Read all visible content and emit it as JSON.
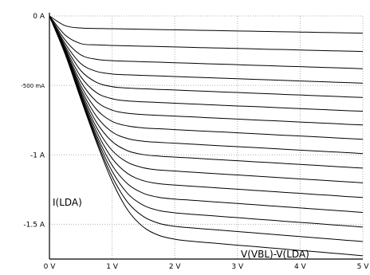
{
  "chart_data": {
    "type": "line",
    "title": "",
    "xlabel": "V(VBL)-V(LDA)",
    "ylabel": "I(LDA)",
    "xlim": [
      0,
      5
    ],
    "ylim": [
      -1.75,
      0
    ],
    "grid": true,
    "x_ticks": [
      {
        "value": 0,
        "label": "0 V"
      },
      {
        "value": 1,
        "label": "1 V"
      },
      {
        "value": 2,
        "label": "2 V"
      },
      {
        "value": 3,
        "label": "3 V"
      },
      {
        "value": 4,
        "label": "4 V"
      },
      {
        "value": 5,
        "label": "5 V"
      }
    ],
    "y_ticks": [
      {
        "value": 0,
        "label": "0 A",
        "small": false
      },
      {
        "value": -0.5,
        "label": "-500 mA",
        "small": true
      },
      {
        "value": -1,
        "label": "-1 A",
        "small": false
      },
      {
        "value": -1.5,
        "label": "-1.5 A",
        "small": false
      }
    ],
    "x": [
      0,
      0.25,
      0.5,
      0.75,
      1,
      1.25,
      1.5,
      1.75,
      2,
      2.25,
      2.5,
      2.75,
      3,
      3.25,
      3.5,
      3.75,
      4,
      4.25,
      4.5,
      4.75,
      5
    ],
    "series": [
      {
        "values": [
          0,
          -0.07,
          -0.087,
          -0.09,
          -0.092,
          -0.094,
          -0.096,
          -0.098,
          -0.1,
          -0.102,
          -0.104,
          -0.106,
          -0.108,
          -0.11,
          -0.112,
          -0.114,
          -0.116,
          -0.118,
          -0.12,
          -0.122,
          -0.124
        ]
      },
      {
        "values": [
          0,
          -0.137,
          -0.199,
          -0.208,
          -0.212,
          -0.215,
          -0.218,
          -0.22,
          -0.223,
          -0.226,
          -0.229,
          -0.231,
          -0.234,
          -0.237,
          -0.24,
          -0.242,
          -0.245,
          -0.248,
          -0.251,
          -0.253,
          -0.256
        ]
      },
      {
        "values": [
          0,
          -0.173,
          -0.28,
          -0.312,
          -0.322,
          -0.326,
          -0.33,
          -0.333,
          -0.337,
          -0.34,
          -0.344,
          -0.347,
          -0.351,
          -0.355,
          -0.358,
          -0.362,
          -0.365,
          -0.369,
          -0.372,
          -0.376,
          -0.38
        ]
      },
      {
        "values": [
          0,
          -0.198,
          -0.343,
          -0.399,
          -0.418,
          -0.424,
          -0.428,
          -0.432,
          -0.436,
          -0.44,
          -0.444,
          -0.448,
          -0.452,
          -0.456,
          -0.46,
          -0.464,
          -0.468,
          -0.472,
          -0.476,
          -0.48,
          -0.484
        ]
      },
      {
        "values": [
          0,
          -0.216,
          -0.393,
          -0.478,
          -0.509,
          -0.519,
          -0.524,
          -0.529,
          -0.533,
          -0.538,
          -0.542,
          -0.547,
          -0.551,
          -0.556,
          -0.56,
          -0.565,
          -0.569,
          -0.574,
          -0.578,
          -0.583,
          -0.587
        ]
      },
      {
        "values": [
          0,
          -0.23,
          -0.437,
          -0.552,
          -0.596,
          -0.612,
          -0.618,
          -0.623,
          -0.628,
          -0.633,
          -0.638,
          -0.643,
          -0.648,
          -0.652,
          -0.657,
          -0.662,
          -0.667,
          -0.672,
          -0.677,
          -0.682,
          -0.686
        ]
      },
      {
        "values": [
          0,
          -0.241,
          -0.473,
          -0.616,
          -0.678,
          -0.701,
          -0.71,
          -0.716,
          -0.721,
          -0.726,
          -0.732,
          -0.737,
          -0.742,
          -0.748,
          -0.753,
          -0.758,
          -0.764,
          -0.769,
          -0.774,
          -0.78,
          -0.785
        ]
      },
      {
        "values": [
          0,
          -0.249,
          -0.501,
          -0.672,
          -0.759,
          -0.792,
          -0.806,
          -0.812,
          -0.818,
          -0.824,
          -0.83,
          -0.835,
          -0.841,
          -0.847,
          -0.853,
          -0.859,
          -0.864,
          -0.87,
          -0.876,
          -0.882,
          -0.888
        ]
      },
      {
        "values": [
          0,
          -0.255,
          -0.523,
          -0.722,
          -0.835,
          -0.883,
          -0.902,
          -0.91,
          -0.916,
          -0.922,
          -0.929,
          -0.935,
          -0.941,
          -0.947,
          -0.953,
          -0.96,
          -0.966,
          -0.972,
          -0.978,
          -0.984,
          -0.991
        ]
      },
      {
        "values": [
          0,
          -0.26,
          -0.541,
          -0.765,
          -0.904,
          -0.971,
          -0.998,
          -1.009,
          -1.016,
          -1.022,
          -1.029,
          -1.036,
          -1.042,
          -1.049,
          -1.055,
          -1.062,
          -1.069,
          -1.075,
          -1.082,
          -1.089,
          -1.095
        ]
      },
      {
        "values": [
          0,
          -0.264,
          -0.556,
          -0.801,
          -0.968,
          -1.055,
          -1.093,
          -1.109,
          -1.116,
          -1.124,
          -1.131,
          -1.138,
          -1.145,
          -1.152,
          -1.159,
          -1.166,
          -1.173,
          -1.18,
          -1.187,
          -1.194,
          -1.201
        ]
      },
      {
        "values": [
          0,
          -0.267,
          -0.568,
          -0.831,
          -1.025,
          -1.135,
          -1.186,
          -1.208,
          -1.217,
          -1.225,
          -1.232,
          -1.24,
          -1.247,
          -1.255,
          -1.262,
          -1.27,
          -1.277,
          -1.285,
          -1.292,
          -1.3,
          -1.307
        ]
      },
      {
        "values": [
          0,
          -0.269,
          -0.578,
          -0.857,
          -1.075,
          -1.21,
          -1.277,
          -1.306,
          -1.318,
          -1.326,
          -1.334,
          -1.342,
          -1.35,
          -1.358,
          -1.366,
          -1.374,
          -1.382,
          -1.39,
          -1.398,
          -1.406,
          -1.414
        ]
      },
      {
        "values": [
          0,
          -0.271,
          -0.586,
          -0.877,
          -1.118,
          -1.279,
          -1.363,
          -1.401,
          -1.417,
          -1.427,
          -1.435,
          -1.444,
          -1.452,
          -1.461,
          -1.469,
          -1.478,
          -1.486,
          -1.494,
          -1.503,
          -1.511,
          -1.52
        ]
      },
      {
        "values": [
          0,
          -0.272,
          -0.592,
          -0.895,
          -1.156,
          -1.342,
          -1.444,
          -1.493,
          -1.514,
          -1.525,
          -1.534,
          -1.543,
          -1.552,
          -1.561,
          -1.57,
          -1.579,
          -1.588,
          -1.597,
          -1.606,
          -1.615,
          -1.624
        ]
      },
      {
        "values": [
          0,
          -0.274,
          -0.597,
          -0.909,
          -1.189,
          -1.398,
          -1.52,
          -1.58,
          -1.607,
          -1.621,
          -1.631,
          -1.64,
          -1.65,
          -1.659,
          -1.669,
          -1.678,
          -1.688,
          -1.697,
          -1.707,
          -1.716,
          -1.726
        ]
      }
    ]
  }
}
